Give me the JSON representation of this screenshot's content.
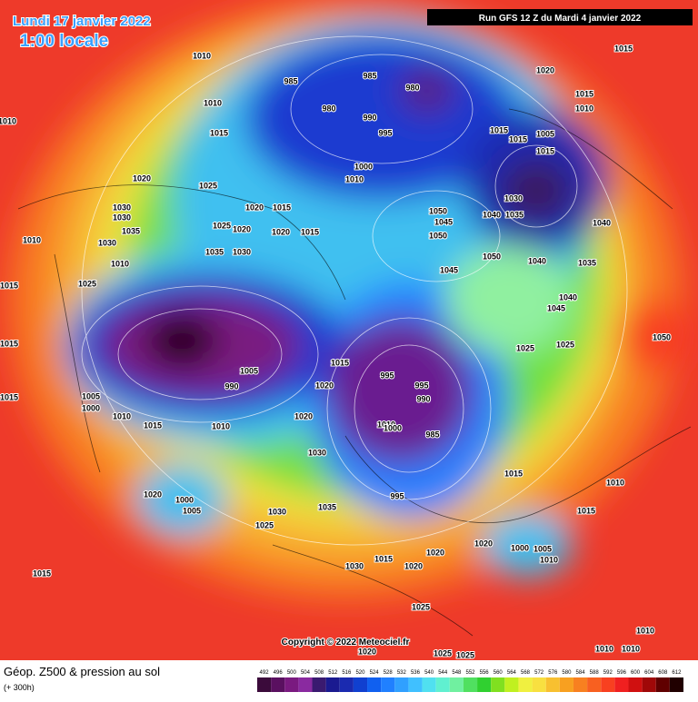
{
  "header": {
    "date": "Lundi 17 janvier 2022",
    "time": "1:00 locale",
    "run": "Run GFS 12 Z du Mardi 4 janvier 2022"
  },
  "copyright": "Copyright © 2022 Meteociel.fr",
  "legend": {
    "title": "Géop. Z500 & pression au sol",
    "subtitle": "(+ 300h)",
    "values": [
      492,
      496,
      500,
      504,
      508,
      512,
      516,
      520,
      524,
      528,
      532,
      536,
      540,
      544,
      548,
      552,
      556,
      560,
      564,
      568,
      572,
      576,
      580,
      584,
      588,
      592,
      596,
      600,
      604,
      608,
      612
    ],
    "colors": [
      "#3b0b3b",
      "#5a1060",
      "#7a1a80",
      "#8a2aa0",
      "#3a1a70",
      "#1a1a90",
      "#1a2ab0",
      "#1040d0",
      "#1060f0",
      "#2080ff",
      "#30a0ff",
      "#40c0ff",
      "#50e0f0",
      "#60f0d0",
      "#70f0a0",
      "#50e060",
      "#30d030",
      "#80e020",
      "#c0f020",
      "#f0f040",
      "#f8e040",
      "#f8c030",
      "#f8a020",
      "#f88020",
      "#f86020",
      "#f84020",
      "#f02020",
      "#d01010",
      "#a00808",
      "#600000",
      "#200000"
    ]
  },
  "isobar_labels": [
    1010,
    985,
    985,
    980,
    1020,
    1015,
    1010,
    1010,
    980,
    990,
    995,
    1015,
    1010,
    1015,
    1015,
    1015,
    1005,
    1015,
    1000,
    1010,
    1020,
    1025,
    1030,
    1030,
    1030,
    1025,
    1020,
    1015,
    1050,
    1045,
    1040,
    1035,
    1040,
    1035,
    1010,
    1030,
    1020,
    1020,
    1015,
    1050,
    1035,
    1030,
    1050,
    1040,
    1035,
    1010,
    1045,
    1025,
    1015,
    1040,
    1045,
    1015,
    1025,
    1025,
    1050,
    1015,
    1005,
    995,
    995,
    990,
    1020,
    990,
    1015,
    1005,
    1000,
    1010,
    1020,
    1015,
    1010,
    1010,
    1000,
    985,
    1030,
    1015,
    1010,
    995,
    1020,
    1000,
    1005,
    1035,
    1015,
    1030,
    1025,
    1020,
    1000,
    1005,
    1010,
    1015,
    1020,
    1030,
    1020,
    1015,
    1025,
    1010,
    1010,
    1010,
    1020,
    1025,
    1025
  ]
}
